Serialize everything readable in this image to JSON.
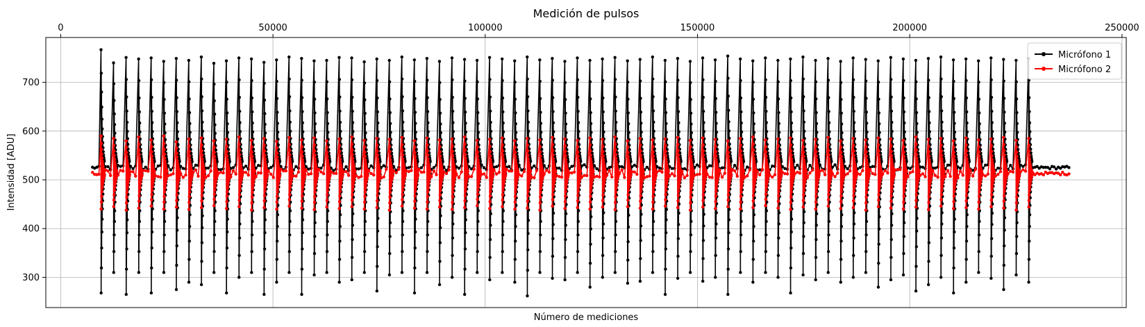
{
  "chart_data": {
    "type": "line",
    "title": "Medición de pulsos",
    "xlabel": "Número de mediciones",
    "ylabel": "Intensidad [ADU]",
    "xlim": [
      -3500,
      251000
    ],
    "ylim": [
      238,
      792
    ],
    "x_ticks": [
      0,
      50000,
      100000,
      150000,
      200000,
      250000
    ],
    "x_tick_labels": [
      "0",
      "50000",
      "100000",
      "150000",
      "200000",
      "250000"
    ],
    "x_tick_position": "top",
    "y_ticks": [
      300,
      400,
      500,
      600,
      700
    ],
    "y_tick_labels": [
      "300",
      "400",
      "500",
      "600",
      "700"
    ],
    "grid": true,
    "legend": "top-right",
    "x_range_data": [
      7500,
      237500
    ],
    "pulse_start": 9500,
    "pulse_end": 228000,
    "pulse_count": 75,
    "series": [
      {
        "name": "Micrófono 1",
        "color": "#000000",
        "baseline": 525,
        "max_peaks": [
          767,
          740,
          751,
          748,
          750,
          743,
          749,
          745,
          752,
          739,
          744,
          750,
          748,
          741,
          746,
          752,
          749,
          744,
          745,
          751,
          750,
          742,
          748,
          745,
          752,
          746,
          749,
          743,
          750,
          747,
          745,
          751,
          748,
          744,
          752,
          746,
          749,
          743,
          750,
          745,
          748,
          751,
          744,
          747,
          752,
          745,
          749,
          743,
          750,
          746,
          754,
          748,
          744,
          750,
          745,
          748,
          752,
          745,
          749,
          743,
          750,
          747,
          744,
          751,
          748,
          745,
          749,
          752,
          746,
          748,
          744,
          750,
          747,
          745,
          749
        ],
        "min_dips": [
          268,
          310,
          265,
          310,
          268,
          310,
          275,
          290,
          285,
          310,
          268,
          300,
          310,
          265,
          290,
          310,
          265,
          305,
          310,
          290,
          295,
          310,
          272,
          305,
          310,
          268,
          310,
          285,
          300,
          265,
          310,
          295,
          310,
          290,
          262,
          310,
          298,
          295,
          310,
          280,
          300,
          310,
          288,
          292,
          310,
          265,
          298,
          310,
          292,
          300,
          265,
          310,
          290,
          310,
          300,
          268,
          305,
          295,
          310,
          290,
          300,
          310,
          280,
          295,
          305,
          272,
          285,
          300,
          268,
          290,
          310,
          298,
          275,
          305,
          290
        ]
      },
      {
        "name": "Micrófono 2",
        "color": "#ff0000",
        "baseline": 513,
        "max_peaks": [
          590,
          585,
          580,
          588,
          582,
          590,
          578,
          584,
          586,
          580,
          583,
          588,
          581,
          585,
          579,
          587,
          582,
          586,
          580,
          584,
          588,
          581,
          585,
          583,
          587,
          580,
          586,
          582,
          584,
          588,
          581,
          583,
          586,
          580,
          585,
          582,
          587,
          584,
          581,
          586,
          583,
          588,
          580,
          585,
          582,
          584,
          587,
          581,
          586,
          583,
          580,
          585,
          588,
          582,
          584,
          586,
          581,
          583,
          587,
          580,
          585,
          582,
          586,
          584,
          581,
          588,
          583,
          585,
          580,
          586,
          582,
          584,
          587,
          581,
          585
        ],
        "min_dips": [
          440,
          445,
          438,
          442,
          446,
          440,
          444,
          439,
          443,
          447,
          441,
          445,
          438,
          443,
          440,
          446,
          442,
          439,
          444,
          441,
          445,
          440,
          443,
          438,
          446,
          442,
          440,
          444,
          439,
          443,
          447,
          441,
          445,
          440,
          442,
          438,
          446,
          441,
          443,
          440,
          444,
          439,
          445,
          442,
          440,
          446,
          443,
          438,
          444,
          441,
          445,
          440,
          443,
          447,
          442,
          439,
          444,
          440,
          446,
          441,
          443,
          438,
          445,
          442,
          440,
          444,
          439,
          446,
          441,
          443,
          440,
          445,
          442,
          438,
          444
        ]
      }
    ]
  }
}
